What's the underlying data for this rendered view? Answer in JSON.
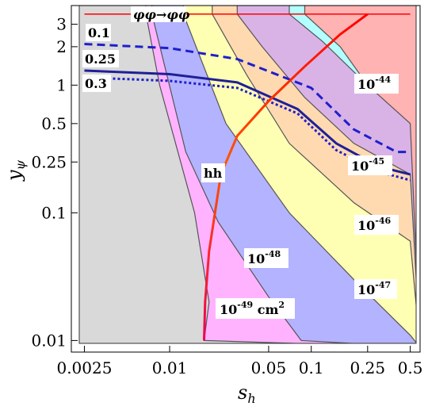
{
  "chart_data": {
    "type": "area",
    "x_label": "s",
    "x_label_sub": "h",
    "y_label": "y",
    "y_label_sub": "ψ",
    "x_scale": "log",
    "y_scale": "log",
    "x_lim": [
      0.0023,
      0.55
    ],
    "y_lim": [
      0.0095,
      4.2
    ],
    "x_ticks": [
      {
        "value": 0.0025,
        "label": "0.0025"
      },
      {
        "value": 0.01,
        "label": "0.01"
      },
      {
        "value": 0.05,
        "label": "0.05"
      },
      {
        "value": 0.1,
        "label": "0.1"
      },
      {
        "value": 0.25,
        "label": "0.25"
      },
      {
        "value": 0.5,
        "label": "0.5"
      }
    ],
    "y_ticks": [
      {
        "value": 0.01,
        "label": "0.01"
      },
      {
        "value": 0.1,
        "label": "0.1"
      },
      {
        "value": 0.25,
        "label": "0.25"
      },
      {
        "value": 0.5,
        "label": "0.5"
      },
      {
        "value": 1,
        "label": "1"
      },
      {
        "value": 2,
        "label": "2"
      },
      {
        "value": 3,
        "label": "3"
      }
    ],
    "regions": [
      {
        "label": "10",
        "exp": "-49",
        "unit": " cm",
        "unit_exp": "2",
        "color": "#ffb3ff",
        "boundary": [
          [
            0.0175,
            0.01
          ],
          [
            0.019,
            0.02
          ],
          [
            0.015,
            0.1
          ],
          [
            0.0085,
            1.0
          ],
          [
            0.0068,
            3.6
          ]
        ]
      },
      {
        "label": "10",
        "exp": "-48",
        "color": "#b3b3ff",
        "boundary": [
          [
            0.085,
            0.01
          ],
          [
            0.05,
            0.022
          ],
          [
            0.022,
            0.085
          ],
          [
            0.013,
            0.3
          ],
          [
            0.0075,
            3.6
          ]
        ]
      },
      {
        "label": "10",
        "exp": "-47",
        "color": "#ffffb3",
        "boundary": [
          [
            0.5,
            0.011
          ],
          [
            0.2,
            0.03
          ],
          [
            0.07,
            0.1
          ],
          [
            0.025,
            0.5
          ],
          [
            0.0125,
            3.6
          ]
        ]
      },
      {
        "label": "10",
        "exp": "-46",
        "color": "#ffdab0",
        "boundary": [
          [
            0.5,
            0.06
          ],
          [
            0.2,
            0.12
          ],
          [
            0.07,
            0.35
          ],
          [
            0.035,
            1.2
          ],
          [
            0.02,
            3.6
          ]
        ]
      },
      {
        "label": "10",
        "exp": "-45",
        "color": "#d9b3e6",
        "boundary": [
          [
            0.5,
            0.2
          ],
          [
            0.2,
            0.35
          ],
          [
            0.09,
            0.8
          ],
          [
            0.045,
            2.0
          ],
          [
            0.03,
            3.6
          ]
        ]
      },
      {
        "label": "10",
        "exp": "-44",
        "color": "#b3ffff",
        "boundary": [
          [
            0.5,
            0.58
          ],
          [
            0.25,
            1.0
          ],
          [
            0.12,
            2.2
          ],
          [
            0.07,
            3.6
          ]
        ]
      },
      {
        "color": "#ffb3b3",
        "boundary": [
          [
            0.5,
            0.5
          ],
          [
            0.25,
            1.0
          ],
          [
            0.16,
            2.0
          ],
          [
            0.09,
            3.6
          ]
        ]
      }
    ],
    "series": [
      {
        "name": "0.1",
        "color": "#1f1fcc",
        "dash": "dashed",
        "points": [
          [
            0.0025,
            2.1
          ],
          [
            0.01,
            1.95
          ],
          [
            0.03,
            1.6
          ],
          [
            0.1,
            0.95
          ],
          [
            0.2,
            0.45
          ],
          [
            0.4,
            0.3
          ],
          [
            0.5,
            0.3
          ]
        ]
      },
      {
        "name": "0.25",
        "color": "#1f1f99",
        "dash": "solid",
        "points": [
          [
            0.0025,
            1.3
          ],
          [
            0.01,
            1.22
          ],
          [
            0.03,
            1.05
          ],
          [
            0.08,
            0.65
          ],
          [
            0.15,
            0.35
          ],
          [
            0.3,
            0.23
          ],
          [
            0.5,
            0.2
          ]
        ]
      },
      {
        "name": "0.3",
        "color": "#1f1fcc",
        "dash": "dotted",
        "points": [
          [
            0.0025,
            1.15
          ],
          [
            0.01,
            1.08
          ],
          [
            0.03,
            0.95
          ],
          [
            0.08,
            0.6
          ],
          [
            0.15,
            0.31
          ],
          [
            0.3,
            0.21
          ],
          [
            0.5,
            0.18
          ]
        ]
      },
      {
        "name": "hh",
        "color": "gradient",
        "dash": "solid",
        "points": [
          [
            0.0175,
            0.01
          ],
          [
            0.0178,
            0.02
          ],
          [
            0.019,
            0.05
          ],
          [
            0.023,
            0.2
          ],
          [
            0.03,
            0.4
          ],
          [
            0.05,
            0.75
          ],
          [
            0.09,
            1.4
          ],
          [
            0.16,
            2.5
          ],
          [
            0.25,
            3.6
          ]
        ]
      },
      {
        "name": "φφ→φφ",
        "color": "#ff0000",
        "dash": "solid",
        "points": [
          [
            0.0025,
            3.6
          ],
          [
            0.5,
            3.6
          ]
        ]
      }
    ],
    "annotations": {
      "r01": {
        "text": "0.1"
      },
      "r025": {
        "text": "0.25"
      },
      "r03": {
        "text": "0.3"
      },
      "hh": {
        "text": "hh"
      },
      "phi": {
        "text": "φφ→φφ"
      }
    }
  }
}
